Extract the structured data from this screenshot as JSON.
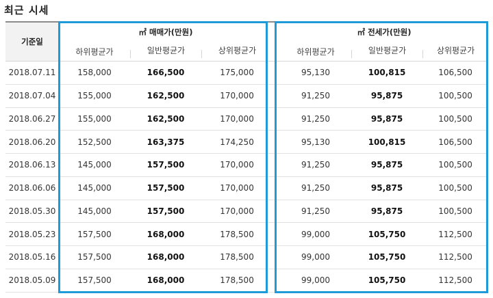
{
  "section_title": "최근 시세",
  "table": {
    "date_header": "기준일",
    "sale_group_title": "㎡ 매매가(만원)",
    "jeonse_group_title": "㎡ 전세가(만원)",
    "sub_headers": [
      "하위평균가",
      "일반평균가",
      "상위평균가"
    ],
    "rows": [
      {
        "date": "2018.07.11",
        "sale_low": "158,000",
        "sale_avg": "166,500",
        "sale_high": "175,000",
        "jeonse_low": "95,130",
        "jeonse_avg": "100,815",
        "jeonse_high": "106,500"
      },
      {
        "date": "2018.07.04",
        "sale_low": "155,000",
        "sale_avg": "162,500",
        "sale_high": "170,000",
        "jeonse_low": "91,250",
        "jeonse_avg": "95,875",
        "jeonse_high": "100,500"
      },
      {
        "date": "2018.06.27",
        "sale_low": "155,000",
        "sale_avg": "162,500",
        "sale_high": "170,000",
        "jeonse_low": "91,250",
        "jeonse_avg": "95,875",
        "jeonse_high": "100,500"
      },
      {
        "date": "2018.06.20",
        "sale_low": "152,500",
        "sale_avg": "163,375",
        "sale_high": "174,250",
        "jeonse_low": "95,130",
        "jeonse_avg": "100,815",
        "jeonse_high": "106,500"
      },
      {
        "date": "2018.06.13",
        "sale_low": "145,000",
        "sale_avg": "157,500",
        "sale_high": "170,000",
        "jeonse_low": "91,250",
        "jeonse_avg": "95,875",
        "jeonse_high": "100,500"
      },
      {
        "date": "2018.06.06",
        "sale_low": "145,000",
        "sale_avg": "157,500",
        "sale_high": "170,000",
        "jeonse_low": "91,250",
        "jeonse_avg": "95,875",
        "jeonse_high": "100,500"
      },
      {
        "date": "2018.05.30",
        "sale_low": "145,000",
        "sale_avg": "157,500",
        "sale_high": "170,000",
        "jeonse_low": "91,250",
        "jeonse_avg": "95,875",
        "jeonse_high": "100,500"
      },
      {
        "date": "2018.05.23",
        "sale_low": "157,500",
        "sale_avg": "168,000",
        "sale_high": "178,500",
        "jeonse_low": "99,000",
        "jeonse_avg": "105,750",
        "jeonse_high": "112,500"
      },
      {
        "date": "2018.05.16",
        "sale_low": "157,500",
        "sale_avg": "168,000",
        "sale_high": "178,500",
        "jeonse_low": "99,000",
        "jeonse_avg": "105,750",
        "jeonse_high": "112,500"
      },
      {
        "date": "2018.05.09",
        "sale_low": "157,500",
        "sale_avg": "168,000",
        "sale_high": "178,500",
        "jeonse_low": "99,000",
        "jeonse_avg": "105,750",
        "jeonse_high": "112,500"
      }
    ]
  },
  "colors": {
    "highlight_border": "#1e9ad8",
    "header_top_border": "#8a8a8a",
    "date_header_bg": "#f2f2f2"
  }
}
